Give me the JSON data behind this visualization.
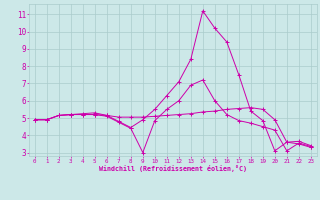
{
  "xlabel": "Windchill (Refroidissement éolien,°C)",
  "background_color": "#cce8e8",
  "grid_color": "#aacccc",
  "line_color": "#cc00aa",
  "xlim": [
    -0.5,
    23.5
  ],
  "ylim": [
    2.8,
    11.6
  ],
  "yticks": [
    3,
    4,
    5,
    6,
    7,
    8,
    9,
    10,
    11
  ],
  "xticks": [
    0,
    1,
    2,
    3,
    4,
    5,
    6,
    7,
    8,
    9,
    10,
    11,
    12,
    13,
    14,
    15,
    16,
    17,
    18,
    19,
    20,
    21,
    22,
    23
  ],
  "line1_x": [
    0,
    1,
    2,
    3,
    4,
    5,
    6,
    7,
    8,
    9,
    10,
    11,
    12,
    13,
    14,
    15,
    16,
    17,
    18,
    19,
    20,
    21,
    22,
    23
  ],
  "line1_y": [
    4.9,
    4.9,
    5.15,
    5.2,
    5.2,
    5.2,
    5.15,
    5.05,
    5.05,
    5.05,
    5.1,
    5.15,
    5.2,
    5.25,
    5.35,
    5.4,
    5.5,
    5.55,
    5.6,
    5.5,
    4.9,
    3.6,
    3.65,
    3.4
  ],
  "line2_x": [
    0,
    1,
    2,
    3,
    4,
    5,
    6,
    7,
    8,
    9,
    10,
    11,
    12,
    13,
    14,
    15,
    16,
    17,
    18,
    19,
    20,
    21,
    22,
    23
  ],
  "line2_y": [
    4.9,
    4.9,
    5.15,
    5.2,
    5.2,
    5.2,
    5.1,
    4.75,
    4.4,
    3.0,
    4.85,
    5.5,
    6.0,
    6.9,
    7.2,
    6.0,
    5.2,
    4.85,
    4.7,
    4.5,
    4.3,
    3.1,
    3.55,
    3.35
  ],
  "line3_x": [
    0,
    1,
    2,
    3,
    4,
    5,
    6,
    7,
    8,
    9,
    10,
    11,
    12,
    13,
    14,
    15,
    16,
    17,
    18,
    19,
    20,
    21,
    22,
    23
  ],
  "line3_y": [
    4.9,
    4.9,
    5.15,
    5.2,
    5.25,
    5.3,
    5.15,
    4.8,
    4.45,
    4.9,
    5.5,
    6.3,
    7.1,
    8.4,
    11.2,
    10.2,
    9.4,
    7.5,
    5.4,
    4.85,
    3.1,
    3.6,
    3.5,
    3.3
  ],
  "marker": "+"
}
